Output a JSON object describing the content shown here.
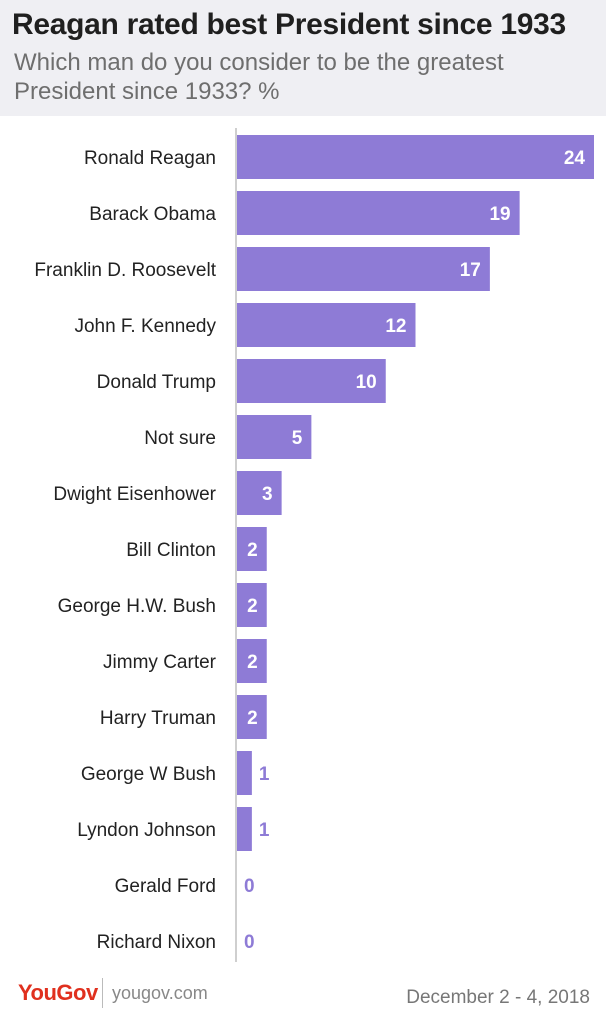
{
  "header": {
    "title": "Reagan rated best President since 1933",
    "subtitle": "Which man do you consider to be the greatest President since 1933? %"
  },
  "footer": {
    "logo": "YouGov",
    "url": "yougov.com",
    "date": "December 2 - 4, 2018"
  },
  "colors": {
    "bar": "#8e7bd6",
    "value_inside": "#ffffff",
    "value_outside": "#8e7bd6",
    "axis": "#cfcfcf",
    "header_bg": "#efeff3",
    "logo": "#e0301e"
  },
  "chart_data": {
    "type": "bar",
    "orientation": "horizontal",
    "title": "Reagan rated best President since 1933",
    "subtitle": "Which man do you consider to be the greatest President since 1933? %",
    "categories": [
      "Ronald Reagan",
      "Barack Obama",
      "Franklin D. Roosevelt",
      "John F. Kennedy",
      "Donald Trump",
      "Not sure",
      "Dwight Eisenhower",
      "Bill Clinton",
      "George H.W. Bush",
      "Jimmy Carter",
      "Harry Truman",
      "George W Bush",
      "Lyndon Johnson",
      "Gerald Ford",
      "Richard Nixon"
    ],
    "values": [
      24,
      19,
      17,
      12,
      10,
      5,
      3,
      2,
      2,
      2,
      2,
      1,
      1,
      0,
      0
    ],
    "xlim": [
      0,
      24
    ],
    "grid": false,
    "data_labels": true
  }
}
